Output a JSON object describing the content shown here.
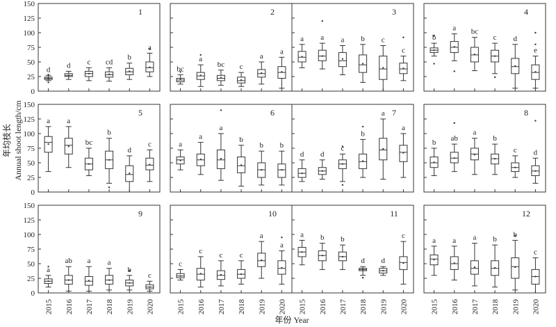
{
  "chart_data": {
    "type": "boxplot",
    "xlabel": "年份 Year",
    "ylabel_cn": "年均枝长",
    "ylabel_en": "Annual shoot length/cm",
    "categories": [
      "2015",
      "2016",
      "2017",
      "2018",
      "2019",
      "2020"
    ],
    "y_ticks": [
      "0",
      "25",
      "50",
      "75",
      "100",
      "125",
      "150"
    ],
    "ylim": [
      0,
      150
    ],
    "grid": false,
    "panels": [
      {
        "label": "1",
        "letters": [
          "d",
          "d",
          "c",
          "cd",
          "b",
          "a"
        ],
        "boxes": [
          {
            "whisker_low": 18,
            "q1": 20,
            "median": 22,
            "q3": 24,
            "whisker_high": 27,
            "mean": 22,
            "outliers": [
              15,
              28
            ]
          },
          {
            "whisker_low": 20,
            "q1": 25,
            "median": 27,
            "q3": 30,
            "whisker_high": 34,
            "mean": 27,
            "outliers": []
          },
          {
            "whisker_low": 18,
            "q1": 25,
            "median": 30,
            "q3": 34,
            "whisker_high": 40,
            "mean": 30,
            "outliers": []
          },
          {
            "whisker_low": 17,
            "q1": 24,
            "median": 28,
            "q3": 33,
            "whisker_high": 40,
            "mean": 29,
            "outliers": []
          },
          {
            "whisker_low": 20,
            "q1": 28,
            "median": 33,
            "q3": 39,
            "whisker_high": 48,
            "mean": 34,
            "outliers": []
          },
          {
            "whisker_low": 25,
            "q1": 33,
            "median": 40,
            "q3": 50,
            "whisker_high": 65,
            "mean": 41,
            "outliers": [
              72
            ]
          }
        ]
      },
      {
        "label": "2",
        "letters": [
          "bc",
          "a",
          "bc",
          "c",
          "a",
          "a"
        ],
        "boxes": [
          {
            "whisker_low": 12,
            "q1": 16,
            "median": 19,
            "q3": 22,
            "whisker_high": 28,
            "mean": 20,
            "outliers": [
              33
            ]
          },
          {
            "whisker_low": 8,
            "q1": 20,
            "median": 26,
            "q3": 32,
            "whisker_high": 45,
            "mean": 27,
            "outliers": [
              62
            ]
          },
          {
            "whisker_low": 10,
            "q1": 18,
            "median": 22,
            "q3": 27,
            "whisker_high": 36,
            "mean": 23,
            "outliers": []
          },
          {
            "whisker_low": 8,
            "q1": 14,
            "median": 18,
            "q3": 24,
            "whisker_high": 32,
            "mean": 19,
            "outliers": []
          },
          {
            "whisker_low": 12,
            "q1": 24,
            "median": 30,
            "q3": 37,
            "whisker_high": 50,
            "mean": 31,
            "outliers": []
          },
          {
            "whisker_low": 5,
            "q1": 22,
            "median": 32,
            "q3": 42,
            "whisker_high": 58,
            "mean": 33,
            "outliers": []
          }
        ]
      },
      {
        "label": "3",
        "letters": [
          "a",
          "a",
          "a",
          "b",
          "c",
          "c"
        ],
        "boxes": [
          {
            "whisker_low": 40,
            "q1": 50,
            "median": 58,
            "q3": 68,
            "whisker_high": 80,
            "mean": 59,
            "outliers": []
          },
          {
            "whisker_low": 38,
            "q1": 52,
            "median": 60,
            "q3": 70,
            "whisker_high": 82,
            "mean": 60,
            "outliers": [
              120
            ]
          },
          {
            "whisker_low": 28,
            "q1": 42,
            "median": 52,
            "q3": 66,
            "whisker_high": 78,
            "mean": 55,
            "outliers": []
          },
          {
            "whisker_low": 15,
            "q1": 32,
            "median": 45,
            "q3": 62,
            "whisker_high": 80,
            "mean": 47,
            "outliers": []
          },
          {
            "whisker_low": 0,
            "q1": 20,
            "median": 38,
            "q3": 60,
            "whisker_high": 78,
            "mean": 40,
            "outliers": []
          },
          {
            "whisker_low": 18,
            "q1": 30,
            "median": 38,
            "q3": 48,
            "whisker_high": 60,
            "mean": 39,
            "outliers": [
              92
            ]
          }
        ]
      },
      {
        "label": "4",
        "letters": [
          "b",
          "a",
          "bc",
          "c",
          "d",
          "e"
        ],
        "boxes": [
          {
            "whisker_low": 60,
            "q1": 66,
            "median": 70,
            "q3": 74,
            "whisker_high": 82,
            "mean": 70,
            "outliers": [
              47,
              95
            ]
          },
          {
            "whisker_low": 52,
            "q1": 66,
            "median": 75,
            "q3": 85,
            "whisker_high": 98,
            "mean": 76,
            "outliers": [
              34
            ]
          },
          {
            "whisker_low": 35,
            "q1": 50,
            "median": 62,
            "q3": 75,
            "whisker_high": 92,
            "mean": 63,
            "outliers": []
          },
          {
            "whisker_low": 30,
            "q1": 50,
            "median": 60,
            "q3": 70,
            "whisker_high": 82,
            "mean": 60,
            "outliers": [
              24
            ]
          },
          {
            "whisker_low": 5,
            "q1": 30,
            "median": 42,
            "q3": 56,
            "whisker_high": 80,
            "mean": 43,
            "outliers": []
          },
          {
            "whisker_low": 5,
            "q1": 20,
            "median": 32,
            "q3": 45,
            "whisker_high": 60,
            "mean": 33,
            "outliers": [
              100,
              80
            ]
          }
        ]
      },
      {
        "label": "5",
        "letters": [
          "a",
          "a",
          "bc",
          "b",
          "d",
          "c"
        ],
        "boxes": [
          {
            "whisker_low": 35,
            "q1": 68,
            "median": 85,
            "q3": 95,
            "whisker_high": 112,
            "mean": 82,
            "outliers": []
          },
          {
            "whisker_low": 42,
            "q1": 65,
            "median": 80,
            "q3": 92,
            "whisker_high": 112,
            "mean": 78,
            "outliers": []
          },
          {
            "whisker_low": 28,
            "q1": 38,
            "median": 48,
            "q3": 58,
            "whisker_high": 75,
            "mean": 48,
            "outliers": []
          },
          {
            "whisker_low": 15,
            "q1": 40,
            "median": 55,
            "q3": 70,
            "whisker_high": 92,
            "mean": 55,
            "outliers": [
              8
            ]
          },
          {
            "whisker_low": 0,
            "q1": 18,
            "median": 30,
            "q3": 45,
            "whisker_high": 62,
            "mean": 32,
            "outliers": []
          },
          {
            "whisker_low": 18,
            "q1": 38,
            "median": 46,
            "q3": 58,
            "whisker_high": 72,
            "mean": 47,
            "outliers": []
          }
        ]
      },
      {
        "label": "6",
        "letters": [
          "a",
          "a",
          "a",
          "b",
          "b",
          "b"
        ],
        "boxes": [
          {
            "whisker_low": 38,
            "q1": 48,
            "median": 55,
            "q3": 60,
            "whisker_high": 72,
            "mean": 54,
            "outliers": []
          },
          {
            "whisker_low": 30,
            "q1": 45,
            "median": 55,
            "q3": 65,
            "whisker_high": 85,
            "mean": 56,
            "outliers": []
          },
          {
            "whisker_low": 20,
            "q1": 40,
            "median": 55,
            "q3": 72,
            "whisker_high": 100,
            "mean": 57,
            "outliers": [
              140
            ]
          },
          {
            "whisker_low": 10,
            "q1": 33,
            "median": 45,
            "q3": 60,
            "whisker_high": 80,
            "mean": 46,
            "outliers": []
          },
          {
            "whisker_low": 12,
            "q1": 25,
            "median": 38,
            "q3": 50,
            "whisker_high": 70,
            "mean": 38,
            "outliers": []
          },
          {
            "whisker_low": 12,
            "q1": 25,
            "median": 38,
            "q3": 48,
            "whisker_high": 70,
            "mean": 38,
            "outliers": []
          }
        ]
      },
      {
        "label": "7",
        "letters": [
          "d",
          "d",
          "c",
          "b",
          "a",
          "a"
        ],
        "boxes": [
          {
            "whisker_low": 18,
            "q1": 25,
            "median": 32,
            "q3": 40,
            "whisker_high": 55,
            "mean": 32,
            "outliers": []
          },
          {
            "whisker_low": 22,
            "q1": 30,
            "median": 36,
            "q3": 42,
            "whisker_high": 55,
            "mean": 36,
            "outliers": []
          },
          {
            "whisker_low": 18,
            "q1": 40,
            "median": 48,
            "q3": 55,
            "whisker_high": 65,
            "mean": 48,
            "outliers": [
              12,
              78
            ]
          },
          {
            "whisker_low": 25,
            "q1": 40,
            "median": 52,
            "q3": 65,
            "whisker_high": 90,
            "mean": 53,
            "outliers": [
              112
            ]
          },
          {
            "whisker_low": 22,
            "q1": 55,
            "median": 72,
            "q3": 92,
            "whisker_high": 125,
            "mean": 74,
            "outliers": []
          },
          {
            "whisker_low": 25,
            "q1": 52,
            "median": 68,
            "q3": 80,
            "whisker_high": 100,
            "mean": 67,
            "outliers": []
          }
        ]
      },
      {
        "label": "8",
        "letters": [
          "b",
          "ab",
          "a",
          "b",
          "c",
          "d"
        ],
        "boxes": [
          {
            "whisker_low": 28,
            "q1": 42,
            "median": 50,
            "q3": 60,
            "whisker_high": 75,
            "mean": 51,
            "outliers": []
          },
          {
            "whisker_low": 35,
            "q1": 50,
            "median": 58,
            "q3": 68,
            "whisker_high": 82,
            "mean": 58,
            "outliers": [
              118
            ]
          },
          {
            "whisker_low": 30,
            "q1": 55,
            "median": 65,
            "q3": 75,
            "whisker_high": 92,
            "mean": 64,
            "outliers": []
          },
          {
            "whisker_low": 30,
            "q1": 48,
            "median": 57,
            "q3": 65,
            "whisker_high": 82,
            "mean": 57,
            "outliers": []
          },
          {
            "whisker_low": 25,
            "q1": 35,
            "median": 42,
            "q3": 50,
            "whisker_high": 62,
            "mean": 42,
            "outliers": []
          },
          {
            "whisker_low": 15,
            "q1": 28,
            "median": 36,
            "q3": 45,
            "whisker_high": 58,
            "mean": 36,
            "outliers": [
              122
            ]
          }
        ]
      },
      {
        "label": "9",
        "letters": [
          "a",
          "ab",
          "a",
          "a",
          "b",
          "c"
        ],
        "boxes": [
          {
            "whisker_low": 10,
            "q1": 16,
            "median": 20,
            "q3": 24,
            "whisker_high": 30,
            "mean": 20,
            "outliers": [
              45
            ]
          },
          {
            "whisker_low": 3,
            "q1": 15,
            "median": 22,
            "q3": 30,
            "whisker_high": 45,
            "mean": 22,
            "outliers": []
          },
          {
            "whisker_low": 3,
            "q1": 13,
            "median": 20,
            "q3": 28,
            "whisker_high": 45,
            "mean": 21,
            "outliers": []
          },
          {
            "whisker_low": 5,
            "q1": 15,
            "median": 22,
            "q3": 30,
            "whisker_high": 42,
            "mean": 22,
            "outliers": []
          },
          {
            "whisker_low": 5,
            "q1": 12,
            "median": 17,
            "q3": 22,
            "whisker_high": 30,
            "mean": 17,
            "outliers": [
              38
            ]
          },
          {
            "whisker_low": 3,
            "q1": 7,
            "median": 10,
            "q3": 14,
            "whisker_high": 20,
            "mean": 10,
            "outliers": []
          }
        ]
      },
      {
        "label": "10",
        "letters": [
          "c",
          "c",
          "c",
          "c",
          "a",
          "a"
        ],
        "boxes": [
          {
            "whisker_low": 22,
            "q1": 26,
            "median": 29,
            "q3": 33,
            "whisker_high": 40,
            "mean": 29,
            "outliers": []
          },
          {
            "whisker_low": 10,
            "q1": 22,
            "median": 32,
            "q3": 42,
            "whisker_high": 62,
            "mean": 33,
            "outliers": []
          },
          {
            "whisker_low": 12,
            "q1": 23,
            "median": 30,
            "q3": 38,
            "whisker_high": 55,
            "mean": 31,
            "outliers": []
          },
          {
            "whisker_low": 15,
            "q1": 25,
            "median": 32,
            "q3": 40,
            "whisker_high": 55,
            "mean": 32,
            "outliers": []
          },
          {
            "whisker_low": 25,
            "q1": 45,
            "median": 55,
            "q3": 68,
            "whisker_high": 88,
            "mean": 56,
            "outliers": []
          },
          {
            "whisker_low": 15,
            "q1": 32,
            "median": 42,
            "q3": 55,
            "whisker_high": 72,
            "mean": 43,
            "outliers": [
              95
            ]
          }
        ]
      },
      {
        "label": "11",
        "letters": [
          "a",
          "b",
          "b",
          "d",
          "d",
          "c"
        ],
        "boxes": [
          {
            "whisker_low": 48,
            "q1": 62,
            "median": 70,
            "q3": 78,
            "whisker_high": 90,
            "mean": 70,
            "outliers": []
          },
          {
            "whisker_low": 40,
            "q1": 55,
            "median": 64,
            "q3": 72,
            "whisker_high": 85,
            "mean": 64,
            "outliers": []
          },
          {
            "whisker_low": 40,
            "q1": 55,
            "median": 62,
            "q3": 70,
            "whisker_high": 82,
            "mean": 62,
            "outliers": []
          },
          {
            "whisker_low": 30,
            "q1": 38,
            "median": 40,
            "q3": 42,
            "whisker_high": 45,
            "mean": 40,
            "outliers": [
              26
            ]
          },
          {
            "whisker_low": 30,
            "q1": 34,
            "median": 38,
            "q3": 42,
            "whisker_high": 45,
            "mean": 38,
            "outliers": []
          },
          {
            "whisker_low": 15,
            "q1": 40,
            "median": 52,
            "q3": 62,
            "whisker_high": 88,
            "mean": 51,
            "outliers": []
          }
        ]
      },
      {
        "label": "12",
        "letters": [
          "a",
          "a",
          "a",
          "b",
          "b",
          "c"
        ],
        "boxes": [
          {
            "whisker_low": 30,
            "q1": 48,
            "median": 58,
            "q3": 65,
            "whisker_high": 80,
            "mean": 57,
            "outliers": []
          },
          {
            "whisker_low": 22,
            "q1": 40,
            "median": 50,
            "q3": 62,
            "whisker_high": 80,
            "mean": 51,
            "outliers": []
          },
          {
            "whisker_low": 12,
            "q1": 32,
            "median": 42,
            "q3": 55,
            "whisker_high": 85,
            "mean": 44,
            "outliers": []
          },
          {
            "whisker_low": 10,
            "q1": 30,
            "median": 42,
            "q3": 55,
            "whisker_high": 82,
            "mean": 43,
            "outliers": []
          },
          {
            "whisker_low": 5,
            "q1": 25,
            "median": 45,
            "q3": 60,
            "whisker_high": 90,
            "mean": 44,
            "outliers": [
              98
            ]
          },
          {
            "whisker_low": 0,
            "q1": 15,
            "median": 28,
            "q3": 40,
            "whisker_high": 60,
            "mean": 28,
            "outliers": []
          }
        ]
      }
    ]
  }
}
